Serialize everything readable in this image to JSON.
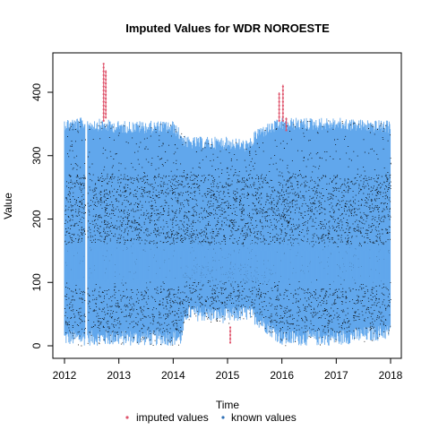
{
  "chart_data": {
    "type": "line",
    "title": "Imputed Values for  WDR NOROESTE",
    "xlabel": "Time",
    "ylabel": "Value",
    "xlim": [
      2012,
      2018
    ],
    "ylim": [
      0,
      440
    ],
    "x_ticks": [
      2012,
      2013,
      2014,
      2015,
      2016,
      2017,
      2018
    ],
    "y_ticks": [
      0,
      100,
      200,
      300,
      400
    ],
    "grid": false,
    "legend": {
      "placement": "bottom",
      "items": [
        "imputed values",
        "known values"
      ]
    },
    "colors": {
      "imputed": "#DF536B",
      "known": "#61A7EC",
      "dense": "#000000"
    },
    "series": [
      {
        "name": "known values",
        "envelope": [
          {
            "x": 2012.0,
            "low": 0,
            "high": 360
          },
          {
            "x": 2012.38,
            "low": 0,
            "high": 360
          },
          {
            "x": 2012.4,
            "gap": true
          },
          {
            "x": 2012.45,
            "low": 0,
            "high": 360
          },
          {
            "x": 2013.0,
            "low": 0,
            "high": 355
          },
          {
            "x": 2014.0,
            "low": 0,
            "high": 355
          },
          {
            "x": 2014.15,
            "low": 0,
            "high": 340
          },
          {
            "x": 2014.25,
            "low": 40,
            "high": 330
          },
          {
            "x": 2015.0,
            "low": 35,
            "high": 330
          },
          {
            "x": 2015.4,
            "low": 40,
            "high": 325
          },
          {
            "x": 2015.55,
            "low": 30,
            "high": 345
          },
          {
            "x": 2016.0,
            "low": 0,
            "high": 360
          },
          {
            "x": 2017.0,
            "low": 0,
            "high": 360
          },
          {
            "x": 2018.0,
            "low": 10,
            "high": 355
          }
        ]
      },
      {
        "name": "imputed values",
        "segments": [
          {
            "x": 2012.72,
            "low": 355,
            "high": 445
          },
          {
            "x": 2012.76,
            "low": 360,
            "high": 435
          },
          {
            "x": 2015.05,
            "low": 5,
            "high": 30
          },
          {
            "x": 2015.95,
            "low": 355,
            "high": 400
          },
          {
            "x": 2016.02,
            "low": 355,
            "high": 412
          },
          {
            "x": 2016.08,
            "low": 340,
            "high": 360
          }
        ]
      }
    ]
  }
}
